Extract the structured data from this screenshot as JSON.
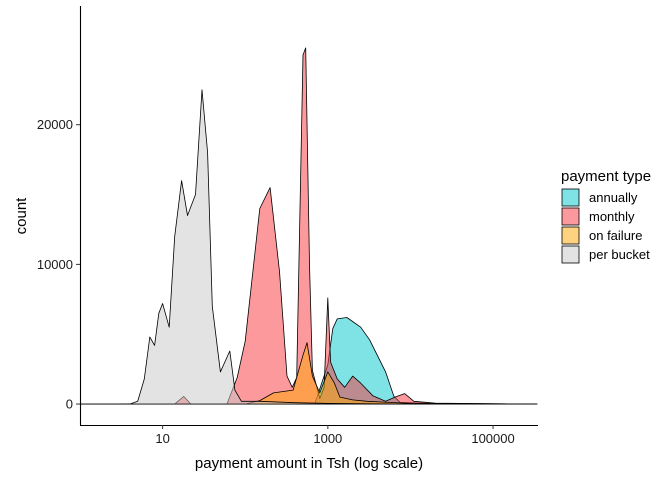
{
  "chart_data": {
    "type": "area",
    "subtype": "density",
    "title": "",
    "xlabel": "payment amount in Tsh (log scale)",
    "ylabel": "count",
    "xscale": "log10",
    "xlim": [
      1,
      350000
    ],
    "ylim": [
      -1500,
      28500
    ],
    "x_ticks": [
      10,
      1000,
      100000
    ],
    "x_tick_labels": [
      "10",
      "1000",
      "100000"
    ],
    "y_ticks": [
      0,
      10000,
      20000
    ],
    "y_tick_labels": [
      "0",
      "10000",
      "20000"
    ],
    "grid": false,
    "legend": {
      "title": "payment type",
      "placement": "right"
    },
    "series": [
      {
        "name": "annually",
        "color": "#00C8CC",
        "points": [
          [
            1,
            0
          ],
          [
            400,
            0
          ],
          [
            700,
            60
          ],
          [
            1000,
            2800
          ],
          [
            1150,
            5400
          ],
          [
            1300,
            6100
          ],
          [
            1700,
            6200
          ],
          [
            2500,
            5500
          ],
          [
            3200,
            4600
          ],
          [
            5000,
            2300
          ],
          [
            6300,
            550
          ],
          [
            7500,
            120
          ],
          [
            20000,
            30
          ],
          [
            340000,
            0
          ]
        ]
      },
      {
        "name": "monthly",
        "color": "#F8333B",
        "points": [
          [
            1,
            0
          ],
          [
            14,
            0
          ],
          [
            18,
            550
          ],
          [
            22,
            0
          ],
          [
            60,
            0
          ],
          [
            80,
            1900
          ],
          [
            100,
            4500
          ],
          [
            150,
            14000
          ],
          [
            200,
            15500
          ],
          [
            260,
            9500
          ],
          [
            320,
            2000
          ],
          [
            370,
            1200
          ],
          [
            420,
            1900
          ],
          [
            500,
            25000
          ],
          [
            540,
            25500
          ],
          [
            600,
            10000
          ],
          [
            650,
            2400
          ],
          [
            800,
            400
          ],
          [
            900,
            1200
          ],
          [
            1000,
            7600
          ],
          [
            1080,
            3000
          ],
          [
            1300,
            1800
          ],
          [
            1600,
            1200
          ],
          [
            2000,
            2000
          ],
          [
            2500,
            1500
          ],
          [
            3500,
            600
          ],
          [
            5000,
            200
          ],
          [
            6500,
            500
          ],
          [
            8500,
            750
          ],
          [
            11000,
            200
          ],
          [
            20000,
            60
          ],
          [
            340000,
            0
          ]
        ]
      },
      {
        "name": "on failure",
        "color": "#FFA500",
        "points": [
          [
            1,
            0
          ],
          [
            100,
            0
          ],
          [
            150,
            250
          ],
          [
            220,
            800
          ],
          [
            380,
            1000
          ],
          [
            500,
            3500
          ],
          [
            560,
            4400
          ],
          [
            650,
            2000
          ],
          [
            800,
            800
          ],
          [
            1000,
            2300
          ],
          [
            1200,
            1500
          ],
          [
            1400,
            500
          ],
          [
            2000,
            300
          ],
          [
            3000,
            200
          ],
          [
            10000,
            50
          ],
          [
            340000,
            0
          ]
        ]
      },
      {
        "name": "per bucket",
        "color": "#C8C8C8",
        "points": [
          [
            3,
            0
          ],
          [
            4,
            0
          ],
          [
            5,
            200
          ],
          [
            6,
            1800
          ],
          [
            7,
            4800
          ],
          [
            8,
            4200
          ],
          [
            9,
            6500
          ],
          [
            10,
            7200
          ],
          [
            12,
            5500
          ],
          [
            14,
            12000
          ],
          [
            17,
            16000
          ],
          [
            20,
            13500
          ],
          [
            25,
            15000
          ],
          [
            30,
            22500
          ],
          [
            35,
            18000
          ],
          [
            40,
            7000
          ],
          [
            50,
            2300
          ],
          [
            65,
            3800
          ],
          [
            75,
            1000
          ],
          [
            90,
            200
          ],
          [
            150,
            200
          ],
          [
            400,
            100
          ],
          [
            1000,
            50
          ],
          [
            10000,
            0
          ],
          [
            340000,
            0
          ]
        ]
      }
    ]
  }
}
